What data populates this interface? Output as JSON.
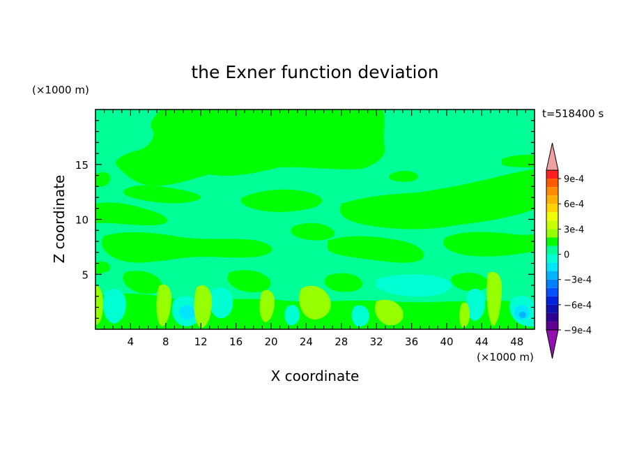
{
  "chart_data": {
    "type": "heatmap",
    "title": "the Exner function deviation",
    "xlabel": "X coordinate",
    "ylabel": "Z coordinate",
    "x_unit": "(×1000 m)",
    "y_unit": "(×1000 m)",
    "time_label": "t=518400 s",
    "xlim": [
      0,
      50
    ],
    "ylim": [
      0,
      20
    ],
    "x_ticks": [
      "4",
      "8",
      "12",
      "16",
      "20",
      "24",
      "28",
      "32",
      "36",
      "40",
      "44",
      "48"
    ],
    "y_ticks": [
      "5",
      "10",
      "15"
    ],
    "colorbar": {
      "levels": [
        "9e-4",
        "6e-4",
        "3e-4",
        "0",
        "−3e-4",
        "−6e-4",
        "−9e-4"
      ],
      "colors": [
        "#f0a0a0",
        "#ff2020",
        "#ff5a00",
        "#ff8c00",
        "#ffb000",
        "#ffd200",
        "#f0ff00",
        "#c8ff00",
        "#96ff00",
        "#00ff00",
        "#00ff96",
        "#00ffd2",
        "#00e6ff",
        "#00b4ff",
        "#0080ff",
        "#0050ff",
        "#0020e0",
        "#1010b0",
        "#300090",
        "#600090",
        "#9010b0"
      ]
    },
    "field_summary": {
      "dominant_values": [
        "0",
        "−1.5e-4"
      ],
      "upper_layer": "0 to 1.5e-4 (green) above ~z=13, patchy",
      "middle_layer": "-1.5e-4 (sea green) between z~5 and z~12 with green streaks",
      "lower_layer": "alternating cells -3e-4 to 3e-4 below z~5"
    }
  }
}
